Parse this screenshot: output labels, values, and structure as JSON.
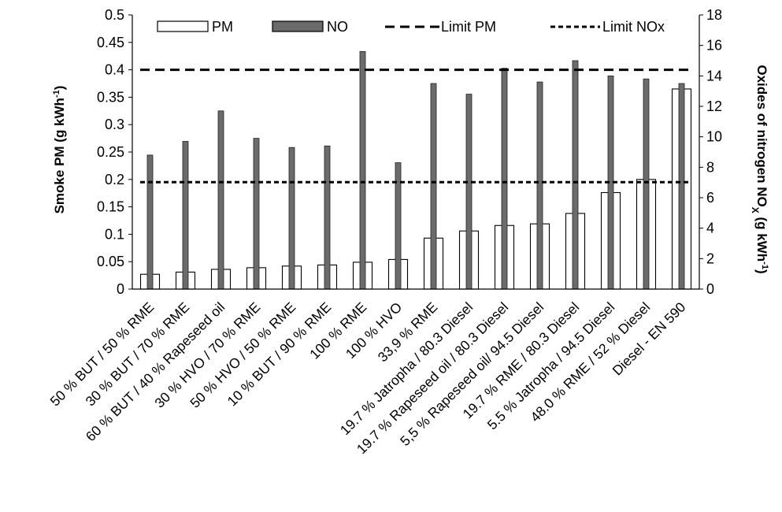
{
  "chart_data": {
    "type": "bar",
    "categories": [
      "50 % BUT / 50 % RME",
      "30 % BUT / 70 % RME",
      "60 % BUT / 40 % Rapeseed oil",
      "30 % HVO / 70 % RME",
      "50 % HVO / 50 % RME",
      "10 % BUT / 90 % RME",
      "100 % RME",
      "100 % HVO",
      "33,9 % RME",
      "19.7 % Jatropha / 80.3 Diesel",
      "19.7 % Rapeseed oil / 80.3 Diesel",
      "5,5 % Rapeseed oil/ 94.5 Diesel",
      "19.7 % RME / 80.3 Diesel",
      "5.5 % Jatropha / 94.5 Diesel",
      "48.0 % RME / 52 % Diesel",
      "Diesel - EN 590"
    ],
    "series": [
      {
        "name": "PM",
        "axis": "left",
        "color": "#ffffff",
        "values": [
          0.027,
          0.031,
          0.036,
          0.039,
          0.042,
          0.044,
          0.049,
          0.054,
          0.093,
          0.106,
          0.116,
          0.119,
          0.138,
          0.176,
          0.2,
          0.365
        ]
      },
      {
        "name": "NO",
        "axis": "right",
        "color": "#6b6b6b",
        "values": [
          8.8,
          9.7,
          11.7,
          9.9,
          9.3,
          9.4,
          15.6,
          8.3,
          13.5,
          12.8,
          14.5,
          13.6,
          15.0,
          14.0,
          13.8,
          13.5
        ]
      }
    ],
    "limits": [
      {
        "name": "Limit PM",
        "axis": "left",
        "value": 0.4,
        "style": "long-dash"
      },
      {
        "name": "Limit NOx",
        "axis": "left",
        "value": 0.195,
        "style": "short-dash"
      }
    ],
    "ylabel": "Smoke PM (g kWh",
    "ylabel_sup": "-1",
    "ylabel_end": ")",
    "y2label": "Oxides of nitrogen NO",
    "y2label_sub": "X",
    "y2label_mid": " (g kWh",
    "y2label_sup": "-1",
    "y2label_end": ")",
    "ylim": [
      0,
      0.5
    ],
    "y2lim": [
      0,
      18
    ],
    "yticks": [
      "0",
      "0.05",
      "0.1",
      "0.15",
      "0.2",
      "0.25",
      "0.3",
      "0.35",
      "0.4",
      "0.45",
      "0.5"
    ],
    "y2ticks": [
      "0",
      "2",
      "4",
      "6",
      "8",
      "10",
      "12",
      "14",
      "16",
      "18"
    ],
    "legend_position": "top",
    "grid": false
  }
}
